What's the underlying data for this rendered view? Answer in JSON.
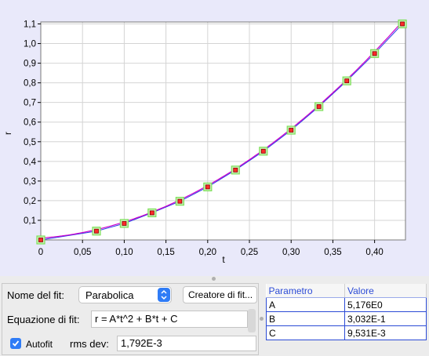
{
  "plot": {
    "x_ticks": [
      "0",
      "0,05",
      "0,10",
      "0,15",
      "0,20",
      "0,25",
      "0,30",
      "0,35",
      "0,40"
    ],
    "y_ticks": [
      "0,1",
      "0,2",
      "0,3",
      "0,4",
      "0,5",
      "0,6",
      "0,7",
      "0,8",
      "0,9",
      "1,0",
      "1,1"
    ],
    "colors": {
      "curve": "#cc00cc",
      "marker_edge": "#7ee05a",
      "marker_fill": "#ff2a2a",
      "data_line": "#2a3ee8"
    }
  },
  "chart_data": {
    "type": "scatter",
    "xlabel": "t",
    "ylabel": "r",
    "xlim": [
      0,
      0.437
    ],
    "ylim": [
      0,
      1.11
    ],
    "grid": true,
    "series": [
      {
        "x": [
          0,
          0.0667,
          0.1,
          0.1333,
          0.1667,
          0.2,
          0.2333,
          0.2667,
          0.3,
          0.3333,
          0.3667,
          0.4,
          0.4333
        ],
        "y": [
          0.0,
          0.045,
          0.084,
          0.138,
          0.197,
          0.27,
          0.356,
          0.452,
          0.559,
          0.679,
          0.81,
          0.949,
          1.1
        ]
      }
    ],
    "fit_curve": {
      "expression": "r = A*t^2 + B*t + C",
      "A": 5.176,
      "B": 0.3032,
      "C": 0.009531
    }
  },
  "fit_panel": {
    "fit_name_label": "Nome del fit:",
    "fit_name_value": "Parabolica",
    "fit_builder_label": "Creatore di fit...",
    "equation_label": "Equazione di fit:",
    "equation_value": "r = A*t^2 + B*t + C",
    "autofit_label": "Autofit",
    "autofit_checked": true,
    "rms_label": "rms dev:",
    "rms_value": "1,792E-3"
  },
  "param_table": {
    "headers": [
      "Parametro",
      "Valore"
    ],
    "rows": [
      [
        "A",
        "5,176E0"
      ],
      [
        "B",
        "3,032E-1"
      ],
      [
        "C",
        "9,531E-3"
      ]
    ]
  }
}
